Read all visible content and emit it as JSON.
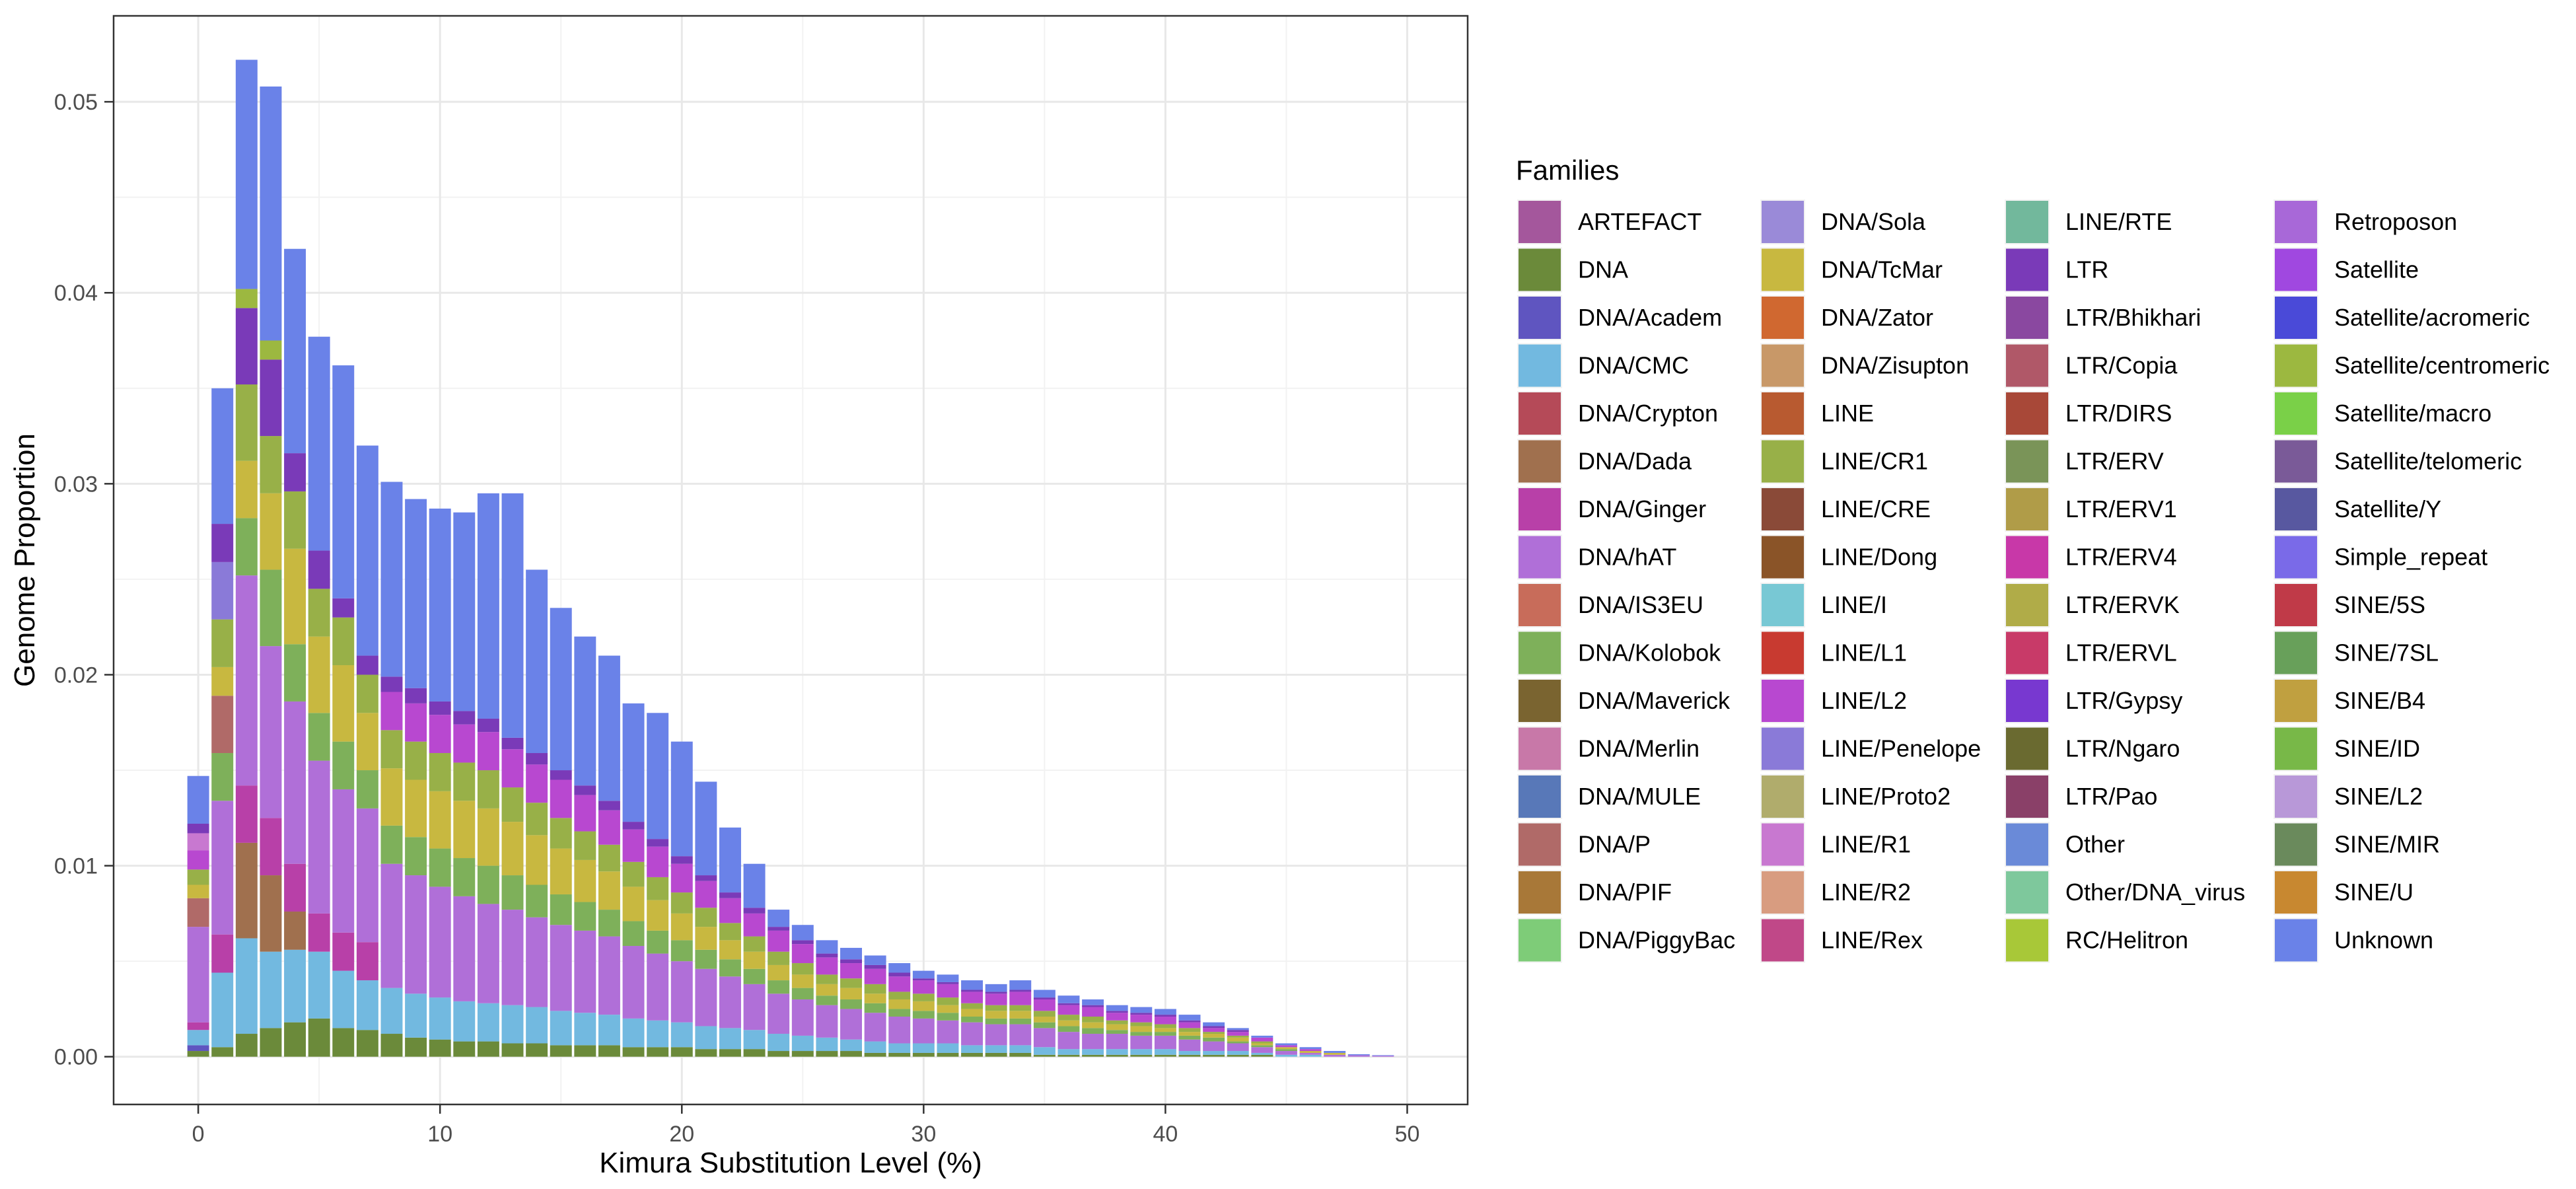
{
  "chart_data": {
    "type": "bar",
    "stacked": true,
    "xlabel": "Kimura Substitution Level (%)",
    "ylabel": "Genome Proportion",
    "xlim": [
      -3.5,
      52.5
    ],
    "ylim": [
      -0.0025,
      0.0545
    ],
    "x_ticks": [
      0,
      10,
      20,
      30,
      40,
      50
    ],
    "y_ticks": [
      0.0,
      0.01,
      0.02,
      0.03,
      0.04,
      0.05
    ],
    "y_tick_labels": [
      "0.00",
      "0.01",
      "0.02",
      "0.03",
      "0.04",
      "0.05"
    ],
    "grid": true,
    "legend_title": "Families",
    "legend_position": "right",
    "families": [
      "ARTEFACT",
      "DNA",
      "DNA/Academ",
      "DNA/CMC",
      "DNA/Crypton",
      "DNA/Dada",
      "DNA/Ginger",
      "DNA/hAT",
      "DNA/IS3EU",
      "DNA/Kolobok",
      "DNA/Maverick",
      "DNA/Merlin",
      "DNA/MULE",
      "DNA/P",
      "DNA/PIF",
      "DNA/PiggyBac",
      "DNA/Sola",
      "DNA/TcMar",
      "DNA/Zator",
      "DNA/Zisupton",
      "LINE",
      "LINE/CR1",
      "LINE/CRE",
      "LINE/Dong",
      "LINE/I",
      "LINE/L1",
      "LINE/L2",
      "LINE/Penelope",
      "LINE/Proto2",
      "LINE/R1",
      "LINE/R2",
      "LINE/Rex",
      "LINE/RTE",
      "LTR",
      "LTR/Bhikhari",
      "LTR/Copia",
      "LTR/DIRS",
      "LTR/ERV",
      "LTR/ERV1",
      "LTR/ERV4",
      "LTR/ERVK",
      "LTR/ERVL",
      "LTR/Gypsy",
      "LTR/Ngaro",
      "LTR/Pao",
      "Other",
      "Other/DNA_virus",
      "RC/Helitron",
      "Retroposon",
      "Satellite",
      "Satellite/acromeric",
      "Satellite/centromeric",
      "Satellite/macro",
      "Satellite/telomeric",
      "Satellite/Y",
      "Simple_repeat",
      "SINE/5S",
      "SINE/7SL",
      "SINE/B4",
      "SINE/ID",
      "SINE/L2",
      "SINE/MIR",
      "SINE/U",
      "Unknown"
    ],
    "colors": [
      "#a4579c",
      "#6b8a3a",
      "#5f55c0",
      "#72b9e0",
      "#b54a58",
      "#a0704e",
      "#b840a8",
      "#b06fd8",
      "#c86c5a",
      "#7eb05a",
      "#7a6430",
      "#c878a8",
      "#5878b8",
      "#b06a68",
      "#a87838",
      "#7ecc78",
      "#9a8ad8",
      "#c8b840",
      "#d06830",
      "#c89868",
      "#b85a30",
      "#98b048",
      "#8a4a38",
      "#8a5428",
      "#78c8d4",
      "#c83a30",
      "#b848d0",
      "#8a7ad8",
      "#b0ac6c",
      "#c878d0",
      "#d89c80",
      "#c04888",
      "#72b89c",
      "#7a3ab8",
      "#8a48a0",
      "#b05868",
      "#a84838",
      "#7a9458",
      "#b09c48",
      "#c838a8",
      "#b0ac48",
      "#c83a68",
      "#7838d0",
      "#6a6a30",
      "#8a4068",
      "#6a8ad8",
      "#7ec89c",
      "#a8c838",
      "#a868d8",
      "#a048e0",
      "#4a4ad8",
      "#9cb840",
      "#7ad048",
      "#7a5a98",
      "#5858a0",
      "#7a6ae8",
      "#c03a48",
      "#68a05a",
      "#c0a040",
      "#78b848",
      "#b898d8",
      "#6a8a5c",
      "#c88830",
      "#6a82e8"
    ],
    "bars": [
      {
        "x": 0,
        "segments": {
          "DNA": 0.0003,
          "DNA/CMC": 0.0008,
          "DNA/hAT": 0.005,
          "DNA/P": 0.0015,
          "LINE/L2": 0.001,
          "LINE/CR1": 0.0008,
          "DNA/TcMar": 0.0007,
          "LINE/R1": 0.0009,
          "DNA/Academ": 0.0003,
          "DNA/Ginger": 0.0004,
          "LTR": 0.0005,
          "Unknown": 0.0025
        }
      },
      {
        "x": 1,
        "segments": {
          "DNA": 0.0005,
          "DNA/CMC": 0.0039,
          "DNA/hAT": 0.007,
          "DNA/P": 0.003,
          "DNA/Kolobok": 0.0025,
          "DNA/TcMar": 0.0015,
          "LINE/CR1": 0.0025,
          "DNA/Ginger": 0.002,
          "LINE/Penelope": 0.003,
          "LTR": 0.002,
          "Unknown": 0.0071
        }
      },
      {
        "x": 2,
        "segments": {
          "DNA": 0.0012,
          "DNA/CMC": 0.005,
          "DNA/hAT": 0.011,
          "DNA/Kolobok": 0.003,
          "DNA/Dada": 0.005,
          "LINE/CR1": 0.004,
          "DNA/TcMar": 0.003,
          "DNA/Ginger": 0.003,
          "LTR": 0.004,
          "Satellite/centromeric": 0.001,
          "Unknown": 0.012
        }
      },
      {
        "x": 3,
        "segments": {
          "DNA": 0.0015,
          "DNA/CMC": 0.004,
          "DNA/hAT": 0.009,
          "DNA/Kolobok": 0.004,
          "DNA/Dada": 0.004,
          "DNA/TcMar": 0.004,
          "LINE/CR1": 0.003,
          "DNA/Ginger": 0.003,
          "LTR": 0.004,
          "Satellite/centromeric": 0.001,
          "Unknown": 0.0133
        }
      },
      {
        "x": 4,
        "segments": {
          "DNA": 0.0018,
          "DNA/CMC": 0.0038,
          "DNA/hAT": 0.0085,
          "DNA/Kolobok": 0.003,
          "DNA/TcMar": 0.005,
          "DNA/Dada": 0.002,
          "LINE/CR1": 0.003,
          "DNA/Ginger": 0.0025,
          "LTR": 0.002,
          "Unknown": 0.0107
        }
      },
      {
        "x": 5,
        "segments": {
          "DNA": 0.002,
          "DNA/CMC": 0.0035,
          "DNA/hAT": 0.008,
          "DNA/Kolobok": 0.0025,
          "DNA/TcMar": 0.004,
          "LINE/CR1": 0.0025,
          "DNA/Ginger": 0.002,
          "LTR": 0.002,
          "Unknown": 0.0112
        }
      },
      {
        "x": 6,
        "segments": {
          "DNA": 0.0015,
          "DNA/CMC": 0.003,
          "DNA/hAT": 0.0075,
          "DNA/Kolobok": 0.0025,
          "DNA/TcMar": 0.004,
          "LINE/CR1": 0.0025,
          "DNA/Ginger": 0.002,
          "LTR": 0.001,
          "Unknown": 0.0122
        }
      },
      {
        "x": 7,
        "segments": {
          "DNA": 0.0014,
          "DNA/CMC": 0.0026,
          "DNA/hAT": 0.007,
          "DNA/Kolobok": 0.002,
          "DNA/TcMar": 0.003,
          "LINE/CR1": 0.002,
          "DNA/Ginger": 0.002,
          "LTR": 0.001,
          "Unknown": 0.011
        }
      },
      {
        "x": 8,
        "segments": {
          "DNA": 0.0012,
          "DNA/CMC": 0.0024,
          "DNA/hAT": 0.0065,
          "DNA/Kolobok": 0.002,
          "DNA/TcMar": 0.003,
          "LINE/CR1": 0.002,
          "LINE/L2": 0.002,
          "LTR": 0.0008,
          "Unknown": 0.0102
        }
      },
      {
        "x": 9,
        "segments": {
          "DNA": 0.001,
          "DNA/CMC": 0.0023,
          "DNA/hAT": 0.0062,
          "DNA/Kolobok": 0.002,
          "DNA/TcMar": 0.003,
          "LINE/CR1": 0.002,
          "LINE/L2": 0.002,
          "LTR": 0.0008,
          "Unknown": 0.0099
        }
      },
      {
        "x": 10,
        "segments": {
          "DNA": 0.0009,
          "DNA/CMC": 0.0022,
          "DNA/hAT": 0.0058,
          "DNA/Kolobok": 0.002,
          "DNA/TcMar": 0.003,
          "LINE/CR1": 0.002,
          "LINE/L2": 0.002,
          "LTR": 0.0007,
          "Unknown": 0.0101
        }
      },
      {
        "x": 11,
        "segments": {
          "DNA": 0.0008,
          "DNA/CMC": 0.0021,
          "DNA/hAT": 0.0055,
          "DNA/Kolobok": 0.002,
          "DNA/TcMar": 0.003,
          "LINE/CR1": 0.002,
          "LINE/L2": 0.002,
          "LTR": 0.0007,
          "Unknown": 0.0104
        }
      },
      {
        "x": 12,
        "segments": {
          "DNA": 0.0008,
          "DNA/CMC": 0.002,
          "DNA/hAT": 0.0052,
          "DNA/Kolobok": 0.002,
          "DNA/TcMar": 0.003,
          "LINE/CR1": 0.002,
          "LINE/L2": 0.002,
          "LTR": 0.0007,
          "Unknown": 0.0118
        }
      },
      {
        "x": 13,
        "segments": {
          "DNA": 0.0007,
          "DNA/CMC": 0.002,
          "DNA/hAT": 0.005,
          "DNA/Kolobok": 0.0018,
          "DNA/TcMar": 0.0028,
          "LINE/CR1": 0.0018,
          "LINE/L2": 0.002,
          "LTR": 0.0006,
          "Unknown": 0.0128
        }
      },
      {
        "x": 14,
        "segments": {
          "DNA": 0.0007,
          "DNA/CMC": 0.0019,
          "DNA/hAT": 0.0047,
          "DNA/Kolobok": 0.0017,
          "DNA/TcMar": 0.0026,
          "LINE/CR1": 0.0017,
          "LINE/L2": 0.002,
          "LTR": 0.0006,
          "Unknown": 0.0096
        }
      },
      {
        "x": 15,
        "segments": {
          "DNA": 0.0006,
          "DNA/CMC": 0.0018,
          "DNA/hAT": 0.0045,
          "DNA/Kolobok": 0.0016,
          "DNA/TcMar": 0.0024,
          "LINE/CR1": 0.0016,
          "LINE/L2": 0.002,
          "LTR": 0.0005,
          "Unknown": 0.0085
        }
      },
      {
        "x": 16,
        "segments": {
          "DNA": 0.0006,
          "DNA/CMC": 0.0017,
          "DNA/hAT": 0.0043,
          "DNA/Kolobok": 0.0015,
          "DNA/TcMar": 0.0022,
          "LINE/CR1": 0.0015,
          "LINE/L2": 0.0019,
          "LTR": 0.0005,
          "Unknown": 0.0078
        }
      },
      {
        "x": 17,
        "segments": {
          "DNA": 0.0006,
          "DNA/CMC": 0.0016,
          "DNA/hAT": 0.0041,
          "DNA/Kolobok": 0.0014,
          "DNA/TcMar": 0.002,
          "LINE/CR1": 0.0014,
          "LINE/L2": 0.0018,
          "LTR": 0.0005,
          "Unknown": 0.0076
        }
      },
      {
        "x": 18,
        "segments": {
          "DNA": 0.0005,
          "DNA/CMC": 0.0015,
          "DNA/hAT": 0.0038,
          "DNA/Kolobok": 0.0013,
          "DNA/TcMar": 0.0018,
          "LINE/CR1": 0.0013,
          "LINE/L2": 0.0017,
          "LTR": 0.0004,
          "Unknown": 0.0062
        }
      },
      {
        "x": 19,
        "segments": {
          "DNA": 0.0005,
          "DNA/CMC": 0.0014,
          "DNA/hAT": 0.0035,
          "DNA/Kolobok": 0.0012,
          "DNA/TcMar": 0.0016,
          "LINE/CR1": 0.0012,
          "LINE/L2": 0.0016,
          "LTR": 0.0004,
          "Unknown": 0.0066
        }
      },
      {
        "x": 20,
        "segments": {
          "DNA": 0.0005,
          "DNA/CMC": 0.0013,
          "DNA/hAT": 0.0032,
          "DNA/Kolobok": 0.0011,
          "DNA/TcMar": 0.0014,
          "LINE/CR1": 0.0011,
          "LINE/L2": 0.0015,
          "LTR": 0.0004,
          "Unknown": 0.006
        }
      },
      {
        "x": 21,
        "segments": {
          "DNA": 0.0004,
          "DNA/CMC": 0.0012,
          "DNA/hAT": 0.003,
          "DNA/Kolobok": 0.001,
          "DNA/TcMar": 0.0012,
          "LINE/CR1": 0.001,
          "LINE/L2": 0.0014,
          "LTR": 0.0003,
          "Unknown": 0.0049
        }
      },
      {
        "x": 22,
        "segments": {
          "DNA": 0.0004,
          "DNA/CMC": 0.0011,
          "DNA/hAT": 0.0027,
          "DNA/Kolobok": 0.0009,
          "DNA/TcMar": 0.001,
          "LINE/CR1": 0.0009,
          "LINE/L2": 0.0013,
          "LTR": 0.0003,
          "Unknown": 0.0034
        }
      },
      {
        "x": 23,
        "segments": {
          "DNA": 0.0004,
          "DNA/CMC": 0.001,
          "DNA/hAT": 0.0024,
          "DNA/Kolobok": 0.0008,
          "DNA/TcMar": 0.0009,
          "LINE/CR1": 0.0008,
          "LINE/L2": 0.0012,
          "LTR": 0.0003,
          "Unknown": 0.0023
        }
      },
      {
        "x": 24,
        "segments": {
          "DNA": 0.0003,
          "DNA/CMC": 0.0009,
          "DNA/hAT": 0.0021,
          "DNA/Kolobok": 0.0007,
          "DNA/TcMar": 0.0008,
          "LINE/CR1": 0.0007,
          "LINE/L2": 0.0011,
          "LTR": 0.0002,
          "Unknown": 0.0009
        }
      },
      {
        "x": 25,
        "segments": {
          "DNA": 0.0003,
          "DNA/CMC": 0.0008,
          "DNA/hAT": 0.0019,
          "DNA/Kolobok": 0.0006,
          "DNA/TcMar": 0.0007,
          "LINE/CR1": 0.0006,
          "LINE/L2": 0.001,
          "LTR": 0.0002,
          "Unknown": 0.0008
        }
      },
      {
        "x": 26,
        "segments": {
          "DNA": 0.0003,
          "DNA/CMC": 0.0007,
          "DNA/hAT": 0.0017,
          "DNA/Kolobok": 0.0005,
          "DNA/TcMar": 0.0006,
          "LINE/CR1": 0.0005,
          "LINE/L2": 0.0009,
          "LTR": 0.0002,
          "Unknown": 0.0007
        }
      },
      {
        "x": 27,
        "segments": {
          "DNA": 0.0003,
          "DNA/CMC": 0.0006,
          "DNA/hAT": 0.0016,
          "DNA/Kolobok": 0.0005,
          "DNA/TcMar": 0.0006,
          "LINE/CR1": 0.0005,
          "LINE/L2": 0.0008,
          "LTR": 0.0002,
          "Unknown": 0.0006
        }
      },
      {
        "x": 28,
        "segments": {
          "DNA": 0.0002,
          "DNA/CMC": 0.0006,
          "DNA/hAT": 0.0015,
          "DNA/Kolobok": 0.0005,
          "DNA/TcMar": 0.0005,
          "LINE/CR1": 0.0005,
          "LINE/L2": 0.0008,
          "LTR": 0.0002,
          "Unknown": 0.0005
        }
      },
      {
        "x": 29,
        "segments": {
          "DNA": 0.0002,
          "DNA/CMC": 0.0005,
          "DNA/hAT": 0.0014,
          "DNA/Kolobok": 0.0004,
          "DNA/TcMar": 0.0005,
          "LINE/CR1": 0.0004,
          "LINE/L2": 0.0008,
          "LTR": 0.0002,
          "Unknown": 0.0005
        }
      },
      {
        "x": 30,
        "segments": {
          "DNA": 0.0002,
          "DNA/CMC": 0.0005,
          "DNA/hAT": 0.0013,
          "DNA/Kolobok": 0.0004,
          "DNA/TcMar": 0.0005,
          "LINE/CR1": 0.0004,
          "LINE/L2": 0.0007,
          "LTR": 0.0001,
          "Unknown": 0.0004
        }
      },
      {
        "x": 31,
        "segments": {
          "DNA": 0.0002,
          "DNA/CMC": 0.0005,
          "DNA/hAT": 0.0012,
          "DNA/Kolobok": 0.0004,
          "DNA/TcMar": 0.0004,
          "LINE/CR1": 0.0004,
          "LINE/L2": 0.0007,
          "LTR": 0.0001,
          "Unknown": 0.0004
        }
      },
      {
        "x": 32,
        "segments": {
          "DNA": 0.0002,
          "DNA/CMC": 0.0004,
          "DNA/hAT": 0.0012,
          "DNA/Kolobok": 0.0003,
          "DNA/TcMar": 0.0004,
          "LINE/CR1": 0.0003,
          "LINE/L2": 0.0006,
          "LTR": 0.0001,
          "Unknown": 0.0005
        }
      },
      {
        "x": 33,
        "segments": {
          "DNA": 0.0002,
          "DNA/CMC": 0.0004,
          "DNA/hAT": 0.0011,
          "DNA/Kolobok": 0.0003,
          "DNA/TcMar": 0.0004,
          "LINE/CR1": 0.0003,
          "LINE/L2": 0.0006,
          "LTR": 0.0001,
          "Unknown": 0.0004
        }
      },
      {
        "x": 34,
        "segments": {
          "DNA": 0.0002,
          "DNA/CMC": 0.0004,
          "DNA/hAT": 0.0011,
          "DNA/Kolobok": 0.0003,
          "DNA/TcMar": 0.0004,
          "LINE/CR1": 0.0003,
          "LINE/L2": 0.0007,
          "LTR": 0.0001,
          "Unknown": 0.0005
        }
      },
      {
        "x": 35,
        "segments": {
          "DNA": 0.0001,
          "DNA/CMC": 0.0004,
          "DNA/hAT": 0.001,
          "DNA/Kolobok": 0.0003,
          "DNA/TcMar": 0.0003,
          "LINE/CR1": 0.0003,
          "LINE/L2": 0.0006,
          "LTR": 0.0001,
          "Unknown": 0.0004
        }
      },
      {
        "x": 36,
        "segments": {
          "DNA": 0.0001,
          "DNA/CMC": 0.0003,
          "DNA/hAT": 0.0009,
          "DNA/Kolobok": 0.0003,
          "DNA/TcMar": 0.0003,
          "LINE/CR1": 0.0003,
          "LINE/L2": 0.0005,
          "LTR": 0.0001,
          "Unknown": 0.0004
        }
      },
      {
        "x": 37,
        "segments": {
          "DNA": 0.0001,
          "DNA/CMC": 0.0003,
          "DNA/hAT": 0.0008,
          "DNA/Kolobok": 0.0003,
          "DNA/TcMar": 0.0003,
          "LINE/CR1": 0.0003,
          "LINE/L2": 0.0005,
          "LTR": 0.0001,
          "Unknown": 0.0003
        }
      },
      {
        "x": 38,
        "segments": {
          "DNA": 0.0001,
          "DNA/CMC": 0.0003,
          "DNA/hAT": 0.0008,
          "DNA/Kolobok": 0.0002,
          "DNA/TcMar": 0.0003,
          "LINE/CR1": 0.0002,
          "LINE/L2": 0.0004,
          "LTR": 0.0001,
          "Unknown": 0.0003
        }
      },
      {
        "x": 39,
        "segments": {
          "DNA": 0.0001,
          "DNA/CMC": 0.0003,
          "DNA/hAT": 0.0007,
          "DNA/Kolobok": 0.0002,
          "DNA/TcMar": 0.0003,
          "LINE/CR1": 0.0002,
          "LINE/L2": 0.0004,
          "LTR": 0.0001,
          "Unknown": 0.0003
        }
      },
      {
        "x": 40,
        "segments": {
          "DNA": 0.0001,
          "DNA/CMC": 0.0003,
          "DNA/hAT": 0.0007,
          "DNA/Kolobok": 0.0002,
          "DNA/TcMar": 0.0002,
          "LINE/CR1": 0.0002,
          "LINE/L2": 0.0004,
          "LTR": 0.0001,
          "Unknown": 0.0003
        }
      },
      {
        "x": 41,
        "segments": {
          "DNA": 0.0001,
          "DNA/CMC": 0.0002,
          "DNA/hAT": 0.0006,
          "DNA/Kolobok": 0.0002,
          "DNA/TcMar": 0.0002,
          "LINE/CR1": 0.0002,
          "LINE/L2": 0.0003,
          "LTR": 0.0001,
          "Unknown": 0.0003
        }
      },
      {
        "x": 42,
        "segments": {
          "DNA": 0.0001,
          "DNA/CMC": 0.0002,
          "DNA/hAT": 0.0005,
          "DNA/Kolobok": 0.0002,
          "DNA/TcMar": 0.0002,
          "LINE/CR1": 0.0001,
          "LINE/L2": 0.0002,
          "LTR": 0.0001,
          "Unknown": 0.0002
        }
      },
      {
        "x": 43,
        "segments": {
          "DNA": 0.0001,
          "DNA/CMC": 0.0002,
          "DNA/hAT": 0.0004,
          "DNA/Kolobok": 0.0001,
          "DNA/TcMar": 0.0002,
          "LINE/CR1": 0.0001,
          "LINE/L2": 0.0002,
          "LTR": 0.0001,
          "Unknown": 0.0001
        }
      },
      {
        "x": 44,
        "segments": {
          "DNA": 0.0001,
          "DNA/CMC": 0.0001,
          "DNA/hAT": 0.0003,
          "DNA/Kolobok": 0.0001,
          "DNA/TcMar": 0.0001,
          "LINE/CR1": 0.0001,
          "LINE/L2": 0.0002,
          "Unknown": 0.0001
        }
      },
      {
        "x": 45,
        "segments": {
          "DNA/CMC": 0.0001,
          "DNA/hAT": 0.0002,
          "DNA/Kolobok": 0.0001,
          "DNA/TcMar": 0.0001,
          "LINE/L2": 0.0001,
          "Unknown": 0.0001
        }
      },
      {
        "x": 46,
        "segments": {
          "DNA/CMC": 0.0001,
          "DNA/hAT": 0.0001,
          "DNA/TcMar": 0.0001,
          "LINE/L2": 0.0001,
          "Unknown": 0.0001
        }
      },
      {
        "x": 47,
        "segments": {
          "DNA/hAT": 0.0001,
          "DNA/TcMar": 0.0001,
          "Unknown": 0.0001
        }
      },
      {
        "x": 48,
        "segments": {
          "DNA/hAT": 8e-05,
          "Unknown": 5e-05
        }
      },
      {
        "x": 49,
        "segments": {
          "DNA/hAT": 5e-05,
          "Unknown": 3e-05
        }
      }
    ]
  }
}
